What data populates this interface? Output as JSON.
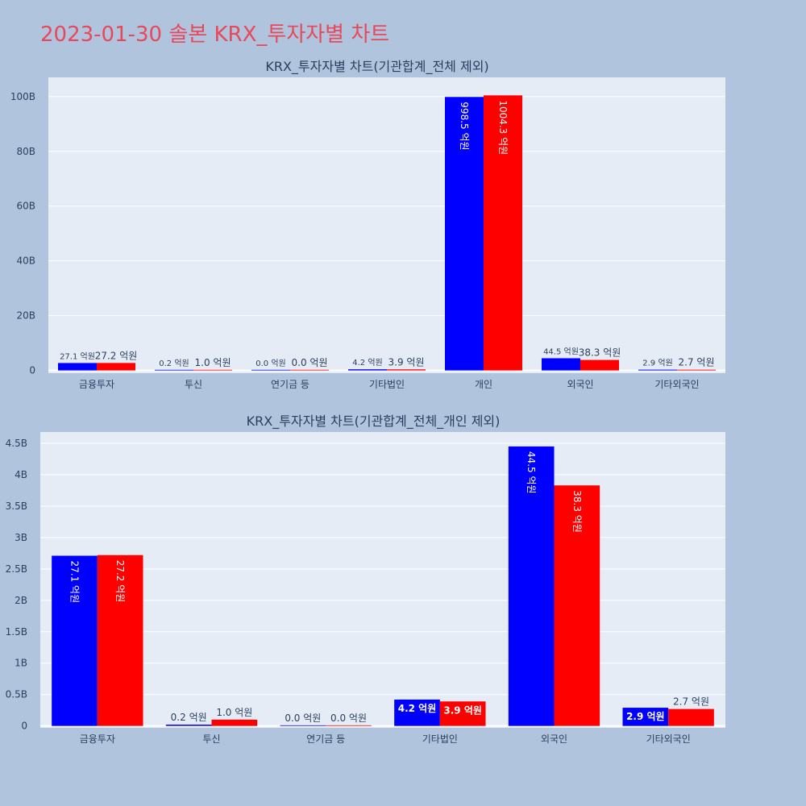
{
  "title": "2023-01-30 솔본 KRX_투자자별 차트",
  "colors": {
    "background": "#b0c4de",
    "plot_bg": "#e5ecf6",
    "buy": "#0000ff",
    "sell": "#ff0000",
    "title": "#e8485a",
    "text": "#2a3f5f"
  },
  "chart_data": [
    {
      "type": "bar",
      "title": "KRX_투자자별 차트(기관합계_전체 제외)",
      "categories": [
        "금융투자",
        "투신",
        "연기금 등",
        "기타법인",
        "개인",
        "외국인",
        "기타외국인"
      ],
      "series": [
        {
          "color": "#0000ff",
          "values": [
            2.71,
            0.02,
            0.0,
            0.42,
            99.85,
            4.45,
            0.29
          ],
          "labels": [
            "27.1 억원",
            "0.2 억원",
            "0.0 억원",
            "4.2 억원",
            "998.5 억원",
            "44.5 억원",
            "2.9 억원"
          ]
        },
        {
          "color": "#ff0000",
          "values": [
            2.72,
            0.1,
            0.0,
            0.39,
            100.43,
            3.83,
            0.27
          ],
          "labels": [
            "27.2 억원",
            "1.0 억원",
            "0.0 억원",
            "3.9 억원",
            "1004.3 억원",
            "38.3 억원",
            "2.7 억원"
          ]
        }
      ],
      "yticks": [
        0,
        20,
        40,
        60,
        80,
        100
      ],
      "ytick_labels": [
        "0",
        "20B",
        "40B",
        "60B",
        "80B",
        "100B"
      ],
      "ylim": [
        -1,
        107
      ],
      "grid": true
    },
    {
      "type": "bar",
      "title": "KRX_투자자별 차트(기관합계_전체_개인 제외)",
      "categories": [
        "금융투자",
        "투신",
        "연기금 등",
        "기타법인",
        "외국인",
        "기타외국인"
      ],
      "series": [
        {
          "color": "#0000ff",
          "values": [
            2.71,
            0.02,
            0.0,
            0.42,
            4.45,
            0.29
          ],
          "labels": [
            "27.1 억원",
            "0.2 억원",
            "0.0 억원",
            "4.2 억원",
            "44.5 억원",
            "2.9 억원"
          ]
        },
        {
          "color": "#ff0000",
          "values": [
            2.72,
            0.1,
            0.0,
            0.39,
            3.83,
            0.27
          ],
          "labels": [
            "27.2 억원",
            "1.0 억원",
            "0.0 억원",
            "3.9 억원",
            "38.3 억원",
            "2.7 억원"
          ]
        }
      ],
      "yticks": [
        0,
        0.5,
        1,
        1.5,
        2,
        2.5,
        3,
        3.5,
        4,
        4.5
      ],
      "ytick_labels": [
        "0",
        "0.5B",
        "1B",
        "1.5B",
        "2B",
        "2.5B",
        "3B",
        "3.5B",
        "4B",
        "4.5B"
      ],
      "ylim": [
        -0.03,
        4.68
      ],
      "grid": true
    }
  ]
}
